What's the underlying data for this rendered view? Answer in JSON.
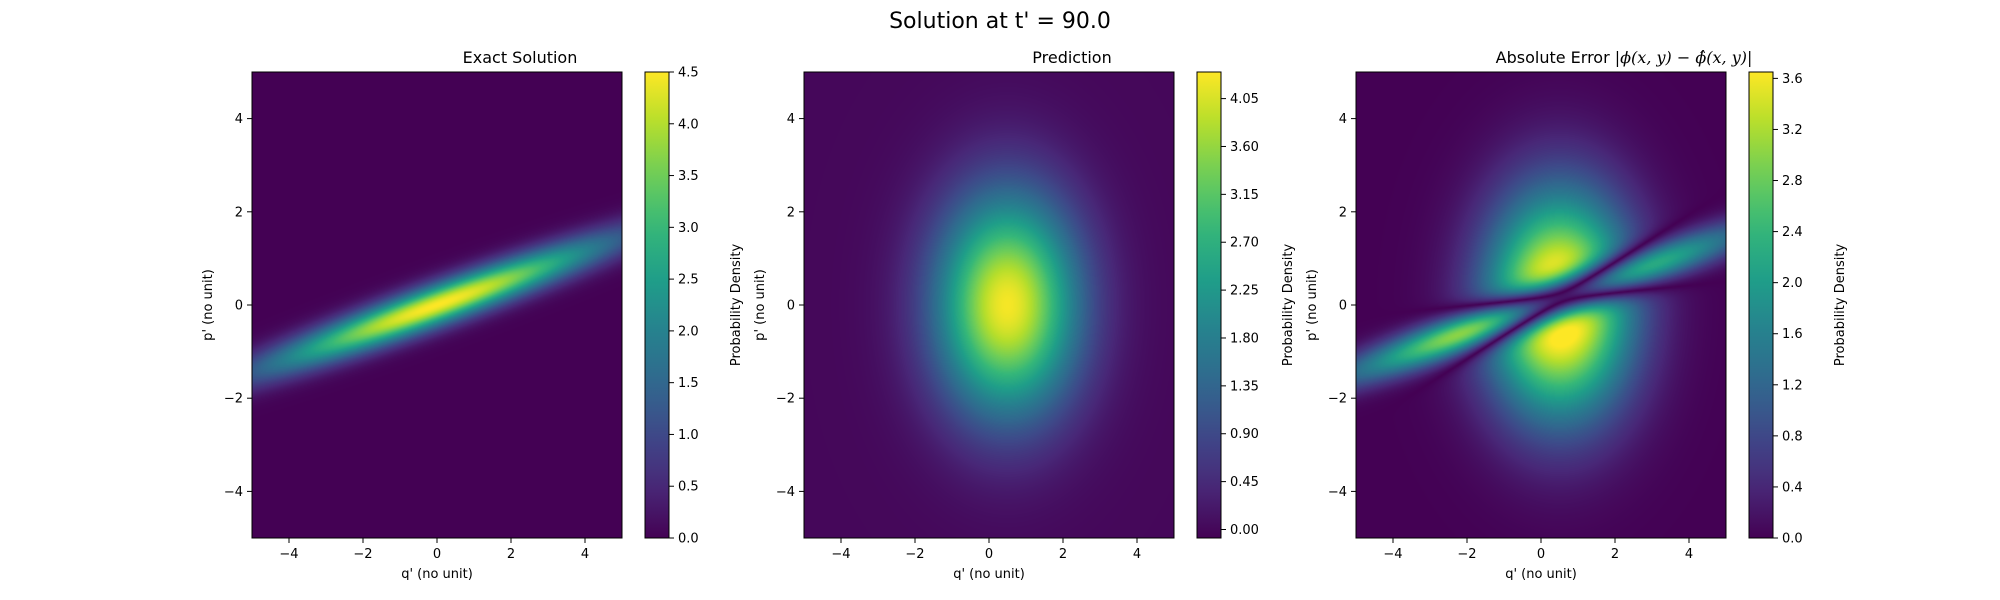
{
  "suptitle": "Solution at t' = 90.0",
  "chart_data": [
    {
      "type": "heatmap",
      "title": "Exact Solution",
      "xlabel": "q' (no unit)",
      "ylabel": "p' (no unit)",
      "xlim": [
        -5,
        5
      ],
      "ylim": [
        -5,
        5
      ],
      "xticks": [
        "−4",
        "−2",
        "0",
        "2",
        "4"
      ],
      "xtick_values": [
        -4,
        -2,
        0,
        2,
        4
      ],
      "yticks": [
        "−4",
        "−2",
        "0",
        "2",
        "4"
      ],
      "ytick_values": [
        -4,
        -2,
        0,
        2,
        4
      ],
      "colormap": "viridis",
      "colorbar_label": "Probability Density",
      "colorbar_range": [
        0.0,
        4.5
      ],
      "colorbar_ticks": [
        "0.0",
        "0.5",
        "1.0",
        "1.5",
        "2.0",
        "2.5",
        "3.0",
        "3.5",
        "4.0",
        "4.5"
      ],
      "colorbar_tick_values": [
        0.0,
        0.5,
        1.0,
        1.5,
        2.0,
        2.5,
        3.0,
        3.5,
        4.0,
        4.5
      ],
      "field": {
        "kind": "tilted-ellipse",
        "peak": 4.5,
        "center": [
          0,
          0
        ],
        "angle_deg": 16,
        "sigma_major": 3.3,
        "sigma_minor": 0.3
      }
    },
    {
      "type": "heatmap",
      "title": "Prediction",
      "xlabel": "q' (no unit)",
      "ylabel": "p' (no unit)",
      "xlim": [
        -5,
        5
      ],
      "ylim": [
        -5,
        5
      ],
      "xticks": [
        "−4",
        "−2",
        "0",
        "2",
        "4"
      ],
      "xtick_values": [
        -4,
        -2,
        0,
        2,
        4
      ],
      "yticks": [
        "−4",
        "−2",
        "0",
        "2",
        "4"
      ],
      "ytick_values": [
        -4,
        -2,
        0,
        2,
        4
      ],
      "colormap": "viridis",
      "colorbar_label": "Probability Density",
      "colorbar_range": [
        -0.08,
        4.3
      ],
      "colorbar_ticks": [
        "0.00",
        "0.45",
        "0.90",
        "1.35",
        "1.80",
        "2.25",
        "2.70",
        "3.15",
        "3.60",
        "4.05"
      ],
      "colorbar_tick_values": [
        0.0,
        0.45,
        0.9,
        1.35,
        1.8,
        2.25,
        2.7,
        3.15,
        3.6,
        4.05
      ],
      "field": {
        "kind": "gaussian",
        "peak": 4.25,
        "center": [
          0.5,
          0
        ],
        "sigma_x": 1.35,
        "sigma_y": 1.65
      }
    },
    {
      "type": "heatmap",
      "title_text": "Absolute Error ",
      "title_math": "|ϕ(x, y) − ϕ̂(x, y)|",
      "xlabel": "q' (no unit)",
      "ylabel": "p' (no unit)",
      "xlim": [
        -5,
        5
      ],
      "ylim": [
        -5,
        5
      ],
      "xticks": [
        "−4",
        "−2",
        "0",
        "2",
        "4"
      ],
      "xtick_values": [
        -4,
        -2,
        0,
        2,
        4
      ],
      "yticks": [
        "−4",
        "−2",
        "0",
        "2",
        "4"
      ],
      "ytick_values": [
        -4,
        -2,
        0,
        2,
        4
      ],
      "colormap": "viridis",
      "colorbar_label": "Probability Density",
      "colorbar_range": [
        0.0,
        3.65
      ],
      "colorbar_ticks": [
        "0.0",
        "0.4",
        "0.8",
        "1.2",
        "1.6",
        "2.0",
        "2.4",
        "2.8",
        "3.2",
        "3.6"
      ],
      "colorbar_tick_values": [
        0.0,
        0.4,
        0.8,
        1.2,
        1.6,
        2.0,
        2.4,
        2.8,
        3.2,
        3.6
      ],
      "field": {
        "kind": "abs-difference",
        "of": [
          0,
          1
        ]
      }
    }
  ]
}
